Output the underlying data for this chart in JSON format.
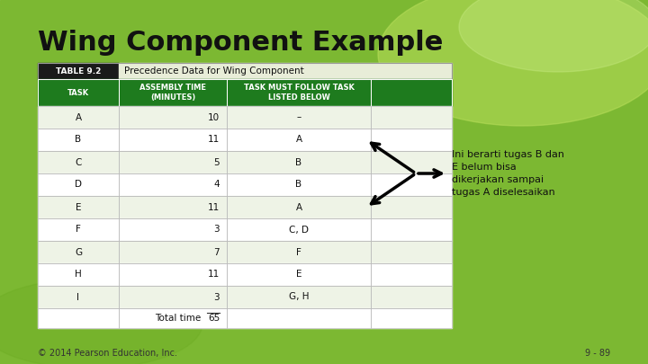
{
  "title": "Wing Component Example",
  "table_header_label": "TABLE 9.2",
  "table_title": "Precedence Data for Wing Component",
  "col_headers": [
    "TASK",
    "ASSEMBLY TIME\n(MINUTES)",
    "TASK MUST FOLLOW TASK\nLISTED BELOW"
  ],
  "rows": [
    [
      "A",
      "10",
      "–"
    ],
    [
      "B",
      "11",
      "A"
    ],
    [
      "C",
      "5",
      "B"
    ],
    [
      "D",
      "4",
      "B"
    ],
    [
      "E",
      "11",
      "A"
    ],
    [
      "F",
      "3",
      "C, D"
    ],
    [
      "G",
      "7",
      "F"
    ],
    [
      "H",
      "11",
      "E"
    ],
    [
      "I",
      "3",
      "G, H"
    ]
  ],
  "total_label": "Total time",
  "total_value": "65",
  "footer": "© 2014 Pearson Education, Inc.",
  "footer_right": "9 - 89",
  "annotation": "Ini berarti tugas B dan\nE belum bisa\ndikerjakan sampai\ntugas A diselesaikan",
  "header_bg": "#1e7b1e",
  "header_fg": "#ffffff",
  "row_bg_even": "#eef3e6",
  "row_bg_odd": "#ffffff",
  "grid_color": "#bbbbbb",
  "table_label_bg": "#1a1a1a",
  "table_label_fg": "#ffffff",
  "table_title_bg": "#e8edd8",
  "bg_green": "#7cb832",
  "bg_light_green": "#a8d44a"
}
